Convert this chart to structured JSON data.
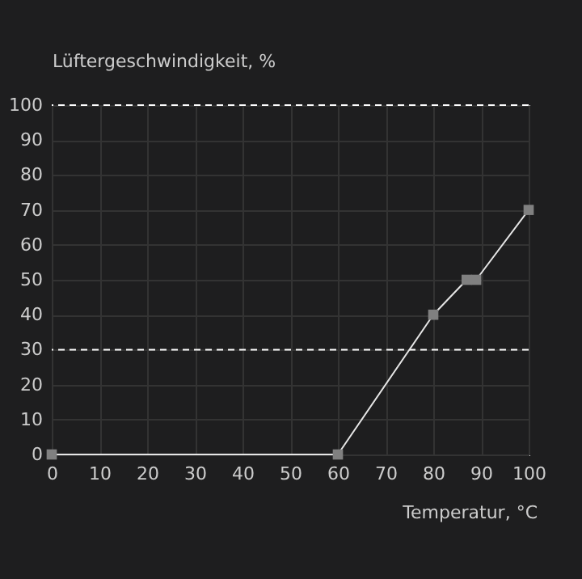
{
  "chart_data": {
    "type": "line",
    "xlabel": "Temperatur, °C",
    "ylabel": "Lüftergeschwindigkeit, %",
    "x": [
      0,
      60,
      80,
      87,
      89,
      100
    ],
    "series": [
      {
        "color": "#e6e6e6",
        "values": [
          0,
          0,
          40,
          50,
          50,
          70
        ]
      }
    ],
    "marker": "square",
    "line_style": "solid",
    "grid": true,
    "xlim": [
      0,
      100
    ],
    "xticks": [
      0,
      10,
      20,
      30,
      40,
      50,
      60,
      70,
      80,
      90,
      100
    ],
    "ylim": [
      0,
      100
    ],
    "yticks": [
      0,
      10,
      20,
      30,
      40,
      50,
      60,
      70,
      80,
      90,
      100
    ],
    "ref_lines": [
      {
        "axis": "y",
        "value": 100,
        "color": "#ffffff",
        "line_style": "dashed"
      },
      {
        "axis": "y",
        "value": 30,
        "color": "#ffffff",
        "line_style": "dashed"
      }
    ]
  }
}
